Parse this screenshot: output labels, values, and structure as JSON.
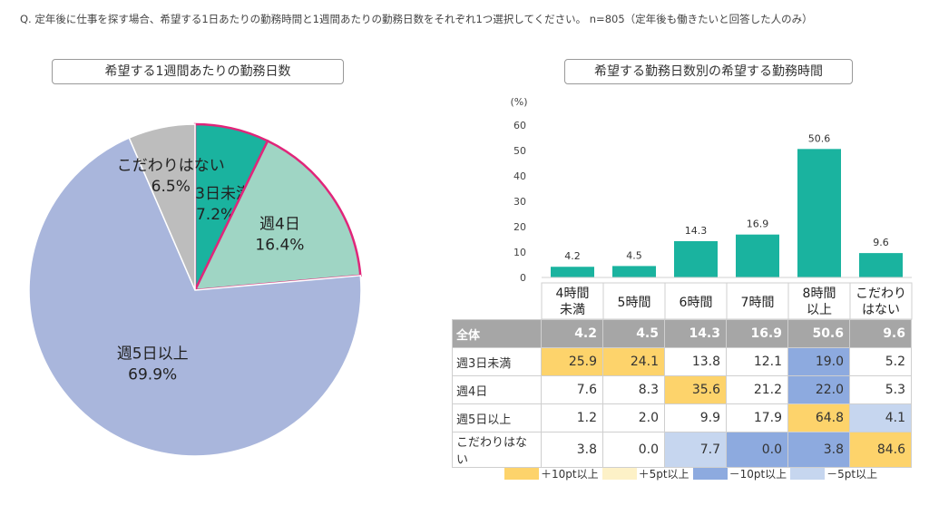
{
  "question": "Q.  定年後に仕事を探す場合、希望する1日あたりの勤務時間と1週間あたりの勤務日数をそれぞれ1つ選択してください。 n=805（定年後も働きたいと回答した人のみ）",
  "pie_title": "希望する1週間あたりの勤務日数",
  "bar_title": "希望する勤務日数別の希望する勤務時間",
  "chart_data": [
    {
      "type": "pie",
      "title": "希望する1週間あたりの勤務日数",
      "slices": [
        {
          "label": "週3日未満",
          "value": 7.2,
          "value_label": "7.2%",
          "color": "#1ab39f",
          "highlight": true
        },
        {
          "label": "週4日",
          "value": 16.4,
          "value_label": "16.4%",
          "color": "#9fd5c4",
          "highlight": true
        },
        {
          "label": "週5日以上",
          "value": 69.9,
          "value_label": "69.9%",
          "color": "#a9b6dc",
          "highlight": false
        },
        {
          "label": "こだわりはない",
          "value": 6.5,
          "value_label": "6.5%",
          "color": "#bdbdbd",
          "highlight": false
        }
      ],
      "highlight_color": "#e0267a"
    },
    {
      "type": "bar",
      "title": "希望する勤務日数別の希望する勤務時間",
      "unit_label": "(%)",
      "ylim": [
        0,
        60
      ],
      "yticks": [
        0,
        10,
        20,
        30,
        40,
        50,
        60
      ],
      "categories": [
        "4時間\n未満",
        "5時間",
        "6時間",
        "7時間",
        "8時間\n以上",
        "こだわり\nはない"
      ],
      "values": [
        4.2,
        4.5,
        14.3,
        16.9,
        50.6,
        9.6
      ],
      "color": "#1ab39f"
    },
    {
      "type": "table",
      "columns": [
        "4時間\n未満",
        "5時間",
        "6時間",
        "7時間",
        "8時間\n以上",
        "こだわり\nはない"
      ],
      "rows": [
        {
          "label": "全体",
          "values": [
            "4.2",
            "4.5",
            "14.3",
            "16.9",
            "50.6",
            "9.6"
          ],
          "cls": [
            "",
            "",
            "",
            "",
            "",
            ""
          ]
        },
        {
          "label": "週3日未満",
          "values": [
            "25.9",
            "24.1",
            "13.8",
            "12.1",
            "19.0",
            "5.2"
          ],
          "cls": [
            "p10",
            "p10",
            "",
            "",
            "m10",
            ""
          ]
        },
        {
          "label": "週4日",
          "values": [
            "7.6",
            "8.3",
            "35.6",
            "21.2",
            "22.0",
            "5.3"
          ],
          "cls": [
            "",
            "",
            "p10",
            "",
            "m10",
            ""
          ]
        },
        {
          "label": "週5日以上",
          "values": [
            "1.2",
            "2.0",
            "9.9",
            "17.9",
            "64.8",
            "4.1"
          ],
          "cls": [
            "",
            "",
            "",
            "",
            "p10",
            "m5"
          ]
        },
        {
          "label": "こだわりはない",
          "values": [
            "3.8",
            "0.0",
            "7.7",
            "0.0",
            "3.8",
            "84.6"
          ],
          "cls": [
            "",
            "",
            "m5",
            "m10",
            "m10",
            "p10"
          ]
        }
      ]
    }
  ],
  "legend": [
    {
      "key": "p10",
      "label": "＋10pt以上",
      "color": "#fdd36b"
    },
    {
      "key": "p5",
      "label": "＋5pt以上",
      "color": "#fdf1c7"
    },
    {
      "key": "m10",
      "label": "－10pt以上",
      "color": "#8daadf"
    },
    {
      "key": "m5",
      "label": "－5pt以上",
      "color": "#c6d6ef"
    }
  ]
}
